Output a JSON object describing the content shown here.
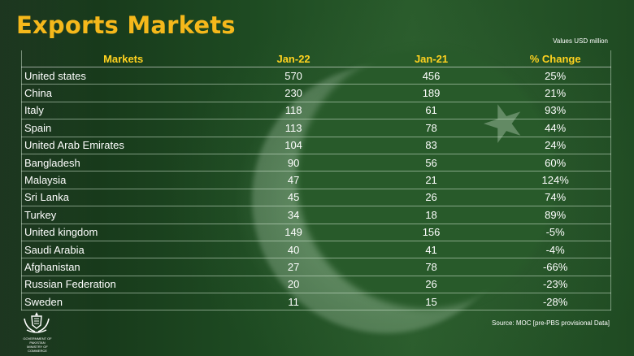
{
  "title": "Exports Markets",
  "units_note": "Values USD million",
  "columns": [
    "Markets",
    "Jan-22",
    "Jan-21",
    "% Change"
  ],
  "rows": [
    {
      "market": "United states",
      "jan22": "570",
      "jan21": "456",
      "change": "25%"
    },
    {
      "market": "China",
      "jan22": "230",
      "jan21": "189",
      "change": "21%"
    },
    {
      "market": "Italy",
      "jan22": "118",
      "jan21": "61",
      "change": "93%"
    },
    {
      "market": "Spain",
      "jan22": "113",
      "jan21": "78",
      "change": "44%"
    },
    {
      "market": "United Arab Emirates",
      "jan22": "104",
      "jan21": "83",
      "change": "24%"
    },
    {
      "market": "Bangladesh",
      "jan22": "90",
      "jan21": "56",
      "change": "60%"
    },
    {
      "market": "Malaysia",
      "jan22": "47",
      "jan21": "21",
      "change": "124%"
    },
    {
      "market": "Sri Lanka",
      "jan22": "45",
      "jan21": "26",
      "change": "74%"
    },
    {
      "market": "Turkey",
      "jan22": "34",
      "jan21": "18",
      "change": "89%"
    },
    {
      "market": "United kingdom",
      "jan22": "149",
      "jan21": "156",
      "change": "-5%"
    },
    {
      "market": "Saudi Arabia",
      "jan22": "40",
      "jan21": "41",
      "change": "-4%"
    },
    {
      "market": "Afghanistan",
      "jan22": "27",
      "jan21": "78",
      "change": "-66%"
    },
    {
      "market": "Russian Federation",
      "jan22": "20",
      "jan21": "26",
      "change": "-23%"
    },
    {
      "market": "Sweden",
      "jan22": "11",
      "jan21": "15",
      "change": "-28%"
    }
  ],
  "source": "Source: MOC  [pre-PBS provisional Data]",
  "logo_text": [
    "GOVERNMENT OF PAKISTAN",
    "MINISTRY OF COMMERCE"
  ],
  "colors": {
    "title": "#f5b81b",
    "header": "#ffd21f",
    "text": "#ffffff",
    "background": "#1f4a22"
  },
  "icons": {
    "emblem": "state-emblem-icon",
    "flag_star": "star-icon",
    "flag_crescent": "crescent-icon"
  }
}
